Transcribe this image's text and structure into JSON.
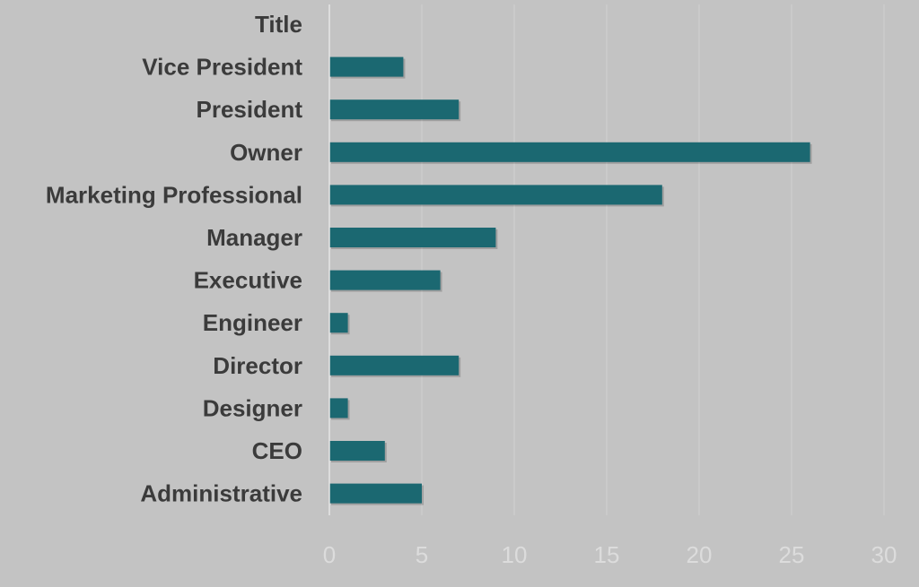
{
  "chart_data": {
    "type": "bar",
    "orientation": "horizontal",
    "categories": [
      "Title",
      "Vice President",
      "President",
      "Owner",
      "Marketing Professional",
      "Manager",
      "Executive",
      "Engineer",
      "Director",
      "Designer",
      "CEO",
      "Administrative"
    ],
    "values": [
      null,
      4,
      7,
      26,
      18,
      9,
      6,
      1,
      7,
      1,
      3,
      5
    ],
    "xticks": [
      "0",
      "5",
      "10",
      "15",
      "20",
      "25",
      "30"
    ],
    "xlim": [
      0,
      30
    ],
    "grid": "vertical",
    "legend": "none",
    "title": "",
    "xlabel": "",
    "ylabel": ""
  },
  "colors": {
    "background": "#c3c3c3",
    "bar": "#1b6871",
    "category_text": "#3b3b3b",
    "tick_text": "#dcdcdc",
    "gridline": "#d2d2d2",
    "axis_line": "#e6e6e6"
  }
}
